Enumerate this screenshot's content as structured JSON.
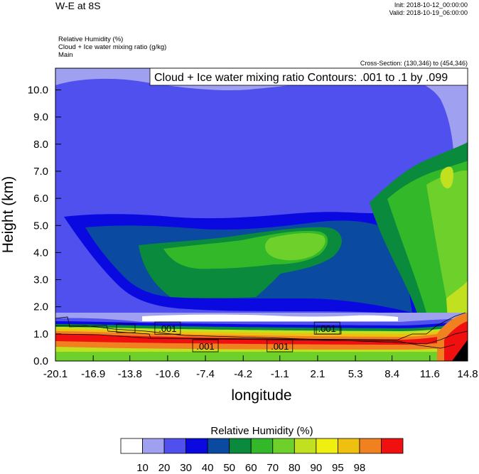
{
  "header": {
    "title": "W-E at 8S",
    "init": "Init: 2018-10-12_00:00:00",
    "valid": "Valid: 2018-10-19_06:00:00",
    "field1": "Relative Humidity   (%)",
    "field2": "Cloud + Ice water mixing ratio   (g/kg)",
    "field3": "Main",
    "cross_section": "Cross-Section: (130,346) to (454,346)",
    "contour_info": "Cloud + Ice water mixing ratio Contours: .001 to .1 by .099"
  },
  "chart_data": {
    "type": "heatmap",
    "xlabel": "longitude",
    "ylabel": "Height (km)",
    "x_ticks": [
      "-20.1",
      "-16.9",
      "-13.8",
      "-10.6",
      "-7.4",
      "-4.2",
      "-1.1",
      "2.1",
      "5.3",
      "8.4",
      "11.6",
      "14.8"
    ],
    "y_ticks": [
      "0.0",
      "1.0",
      "2.0",
      "3.0",
      "4.0",
      "5.0",
      "6.0",
      "7.0",
      "8.0",
      "9.0",
      "10.0"
    ],
    "xlim": [
      -20.1,
      14.8
    ],
    "ylim": [
      0,
      10.8
    ],
    "contour_labels": [
      {
        "text": ".001",
        "x": -10.6,
        "y": 1.2
      },
      {
        "text": ".001",
        "x": -7.4,
        "y": 0.55
      },
      {
        "text": ".001",
        "x": -1.1,
        "y": 0.55
      },
      {
        "text": ".001",
        "x": 2.9,
        "y": 1.2
      }
    ],
    "colorbar": {
      "title": "Relative Humidity  (%)",
      "levels": [
        "10",
        "20",
        "30",
        "40",
        "50",
        "60",
        "70",
        "80",
        "90",
        "95",
        "98"
      ],
      "colors": [
        "#ffffff",
        "#a0a0f0",
        "#5050ee",
        "#0a0ae0",
        "#0a4aa0",
        "#0a8a3c",
        "#33b82a",
        "#6ed02a",
        "#c0e020",
        "#f0f010",
        "#f0c010",
        "#f08020",
        "#f01010"
      ]
    }
  }
}
